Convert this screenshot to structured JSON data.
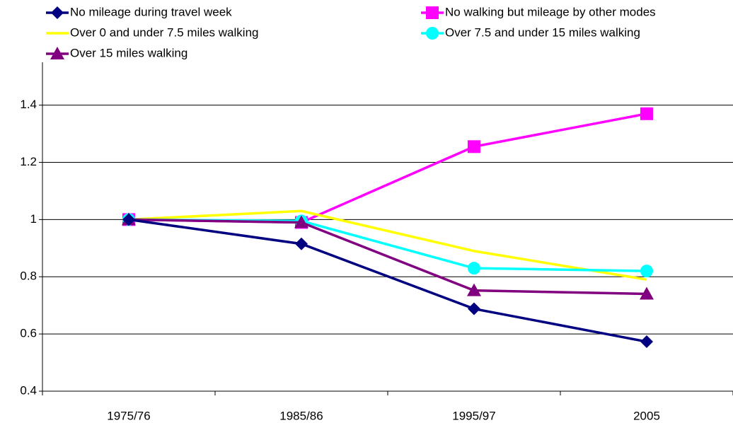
{
  "chart_data": {
    "type": "line",
    "categories": [
      "1975/76",
      "1985/86",
      "1995/97",
      "2005"
    ],
    "series": [
      {
        "name": "No mileage during travel week",
        "color": "#000080",
        "marker": "diamond",
        "values": [
          1,
          0.915,
          0.688,
          0.573
        ]
      },
      {
        "name": "No walking but mileage by other modes",
        "color": "#ff00ff",
        "marker": "square",
        "values": [
          1,
          0.99,
          1.255,
          1.37
        ]
      },
      {
        "name": "Over 0 and under 7.5 miles walking",
        "color": "#ffff00",
        "marker": "none",
        "values": [
          1,
          1.03,
          0.89,
          0.79
        ]
      },
      {
        "name": "Over 7.5 and under 15 miles walking",
        "color": "#00ffff",
        "marker": "circle",
        "values": [
          1,
          0.995,
          0.83,
          0.82
        ]
      },
      {
        "name": "Over 15 miles walking",
        "color": "#800080",
        "marker": "triangle",
        "values": [
          1,
          0.99,
          0.752,
          0.74
        ]
      }
    ],
    "ylim": [
      0.4,
      1.55
    ],
    "yticks": [
      0.4,
      0.6,
      0.8,
      1,
      1.2,
      1.4
    ],
    "grid": true
  }
}
